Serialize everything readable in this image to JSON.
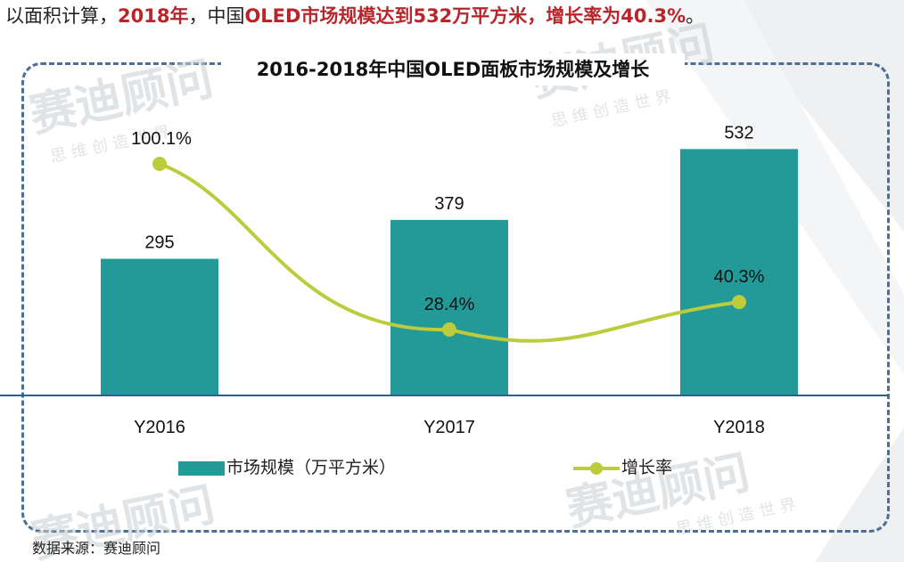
{
  "headline": {
    "prefix": "以面积计算，",
    "year": "2018年",
    "middle": "，中国",
    "highlight": "OLED市场规模达到532万平方米，增长率为40.3%",
    "suffix": "。"
  },
  "watermark": {
    "brand": "赛迪顾问",
    "slogan": "思 维 创 造 世 界"
  },
  "colors": {
    "bar": "#239a97",
    "line": "#bccc3d",
    "accent": "#b8262b",
    "frame": "#4b6f96",
    "axis": "#2e5f8f"
  },
  "chart_data": {
    "type": "bar",
    "title": "2016-2018年中国OLED面板市场规模及增长",
    "categories": [
      "Y2016",
      "Y2017",
      "Y2018"
    ],
    "series": [
      {
        "name": "市场规模（万平方米）",
        "type": "bar",
        "values": [
          295,
          379,
          532
        ],
        "labels": [
          "295",
          "379",
          "532"
        ]
      },
      {
        "name": "增长率",
        "type": "line",
        "values": [
          100.1,
          28.4,
          40.3
        ],
        "labels": [
          "100.1%",
          "28.4%",
          "40.3%"
        ]
      }
    ],
    "legend_position": "bottom",
    "grid": false
  },
  "source": "数据来源：赛迪顾问"
}
